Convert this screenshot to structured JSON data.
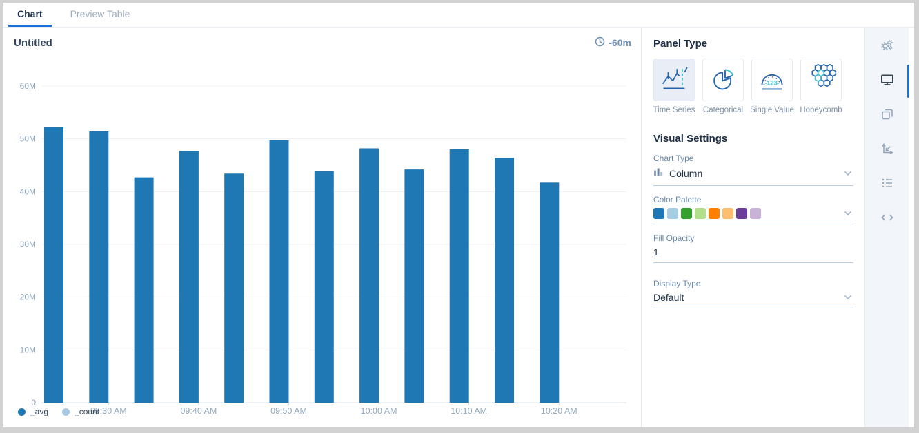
{
  "tab_bar": {
    "tabs": [
      {
        "label": "Chart",
        "active": true
      },
      {
        "label": "Preview Table",
        "active": false
      }
    ]
  },
  "chart_panel": {
    "title": "Untitled",
    "time_range": "-60m",
    "legend": [
      {
        "label": "_avg",
        "color": "#1f78b4"
      },
      {
        "label": "_count",
        "color": "#a5c8e3"
      }
    ]
  },
  "chart_data": {
    "type": "bar",
    "title": "Untitled",
    "time_range": "-60m",
    "series": [
      {
        "name": "_avg",
        "values_millions": [
          52.2,
          51.4,
          42.7,
          47.7,
          43.4,
          49.7,
          43.9,
          48.2,
          44.2,
          48.0,
          46.4,
          41.7
        ]
      },
      {
        "name": "_count",
        "values_millions": [],
        "note": "in legend only, no visible bars"
      }
    ],
    "x_tick_labels": [
      "09:30 AM",
      "09:40 AM",
      "09:50 AM",
      "10:00 AM",
      "10:10 AM",
      "10:20 AM"
    ],
    "y_tick_labels": [
      "0",
      "10M",
      "20M",
      "30M",
      "40M",
      "50M",
      "60M"
    ],
    "ylim_millions": [
      0,
      60
    ],
    "bar_color": "#1f78b4",
    "grid": "horizontal",
    "legend_position": "bottom-left"
  },
  "settings_panel": {
    "panel_type": {
      "heading": "Panel Type",
      "options": [
        {
          "label": "Time Series",
          "selected": true
        },
        {
          "label": "Categorical",
          "selected": false
        },
        {
          "label": "Single Value",
          "selected": false
        },
        {
          "label": "Honeycomb",
          "selected": false
        }
      ]
    },
    "visual_settings": {
      "heading": "Visual Settings",
      "chart_type": {
        "label": "Chart Type",
        "value": "Column"
      },
      "color_palette": {
        "label": "Color Palette",
        "swatches": [
          "#1f78b4",
          "#a6cee3",
          "#33a02c",
          "#b2df8a",
          "#ff7f00",
          "#fdbf6f",
          "#6a3d9a",
          "#cab2d6"
        ]
      },
      "fill_opacity": {
        "label": "Fill Opacity",
        "value": "1"
      },
      "display_type": {
        "label": "Display Type",
        "value": "Default"
      }
    }
  },
  "right_rail": {
    "icons": [
      "gears",
      "display",
      "duplicate",
      "axes",
      "list",
      "code"
    ],
    "active_icon": "display",
    "accent_color": "#1a6fdb"
  }
}
